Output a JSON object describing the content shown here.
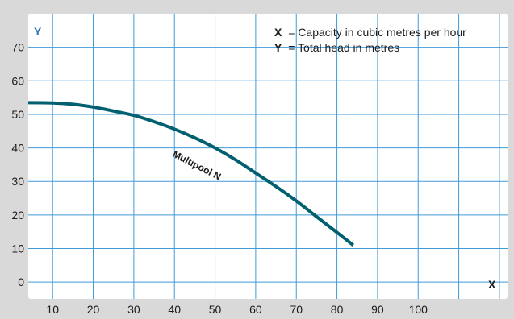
{
  "chart_data": {
    "type": "line",
    "xlabel": "X",
    "ylabel": "Y",
    "legend": [
      {
        "key": "X",
        "text": "= Capacity in cubic metres per hour"
      },
      {
        "key": "Y",
        "text": "= Total head in metres"
      }
    ],
    "x_tick_labels": [
      "10",
      "20",
      "30",
      "40",
      "50",
      "60",
      "70",
      "80",
      "90",
      "100"
    ],
    "y_tick_labels": [
      "0",
      "10",
      "20",
      "30",
      "40",
      "50",
      "60",
      "70"
    ],
    "xlim": [
      4,
      122
    ],
    "ylim": [
      -5,
      80
    ],
    "grid": true,
    "series": [
      {
        "name": "Multipool N",
        "x": [
          4,
          10,
          15,
          20,
          25,
          30,
          35,
          40,
          45,
          50,
          55,
          60,
          65,
          70,
          75,
          80,
          84
        ],
        "y": [
          53.5,
          53.4,
          53,
          52.2,
          51,
          49.7,
          47.8,
          45.6,
          43,
          40,
          36.5,
          32.5,
          28.5,
          24.2,
          19.5,
          14.8,
          11
        ]
      }
    ],
    "colors": {
      "line": "#006070",
      "grid": "#3f9ad8",
      "plot_bg": "#ffffff",
      "axis_letter": "#2b6fa8",
      "outer_bg": "#d9d9d9"
    }
  }
}
